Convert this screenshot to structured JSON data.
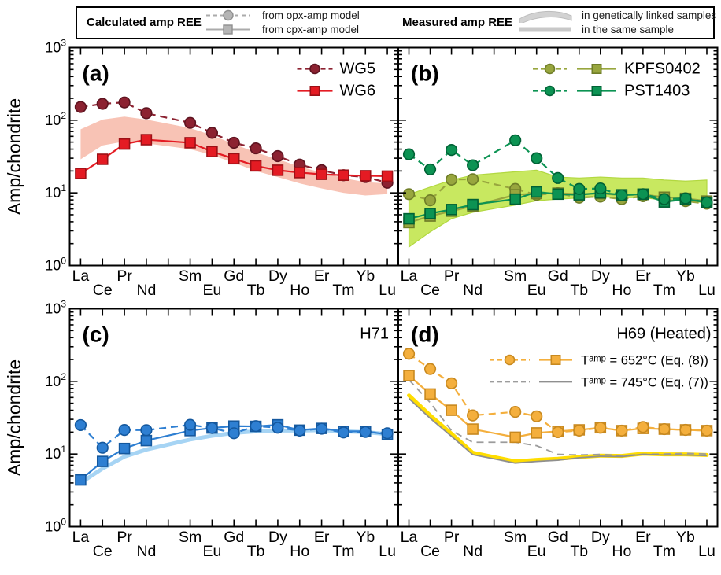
{
  "figure": {
    "y_axis_label": "Amp/chondrite",
    "y_tick_exponents": [
      0,
      1,
      2,
      3
    ],
    "x_elements": [
      "La",
      "Ce",
      "Pr",
      "Nd",
      "Sm",
      "Eu",
      "Gd",
      "Tb",
      "Dy",
      "Ho",
      "Er",
      "Tm",
      "Yb",
      "Lu"
    ]
  },
  "top_legend": {
    "calculated": {
      "title": "Calculated amp REE",
      "items": [
        {
          "swatch": "dashed-line-circle",
          "label": "from opx-amp model"
        },
        {
          "swatch": "solid-line-square",
          "label": "from cpx-amp model"
        }
      ]
    },
    "measured": {
      "title": "Measured amp REE",
      "items": [
        {
          "swatch": "band",
          "label": "in genetically linked samples"
        },
        {
          "swatch": "thick-line",
          "label": "in the same sample"
        }
      ]
    }
  },
  "chart_data": [
    {
      "panel": "a",
      "panel_label": "(a)",
      "corner_label": "",
      "type": "line",
      "y_scale": "log",
      "ylim": [
        1,
        1000
      ],
      "ylabel": "Amp/chondrite",
      "x_categories": [
        "La",
        "Ce",
        "Pr",
        "Nd",
        "Sm",
        "Eu",
        "Gd",
        "Tb",
        "Dy",
        "Ho",
        "Er",
        "Tm",
        "Yb",
        "Lu"
      ],
      "band": {
        "label": "measured amp REE in genetically linked samples",
        "color": "#f8c3b5",
        "upper": [
          75,
          102,
          112,
          102,
          78,
          62,
          47,
          36,
          29,
          23,
          19,
          16,
          14,
          13.5
        ],
        "lower": [
          29,
          45,
          51,
          48,
          40,
          33,
          26,
          20,
          16.5,
          13.5,
          11.5,
          10,
          9.2,
          9.6
        ]
      },
      "series": [
        {
          "name": "WG5",
          "model": "opx-amp",
          "line": "dashed",
          "marker": "circle",
          "color": "#8c2231",
          "edge": "#5e1420",
          "values": [
            152,
            168,
            176,
            125,
            92,
            67,
            49,
            41,
            32,
            24.5,
            20.5,
            17.5,
            16.5,
            13.8
          ]
        },
        {
          "name": "WG6",
          "model": "cpx-amp",
          "line": "solid",
          "marker": "square",
          "color": "#e41b23",
          "edge": "#9c1016",
          "values": [
            18.5,
            29,
            47,
            54,
            49,
            37,
            29.5,
            23.5,
            20.5,
            19,
            18,
            17.5,
            17.2,
            17
          ]
        }
      ],
      "legend": [
        {
          "label": "WG5",
          "swatches": [
            {
              "line": "dashed",
              "marker": "circle",
              "color": "#8c2231",
              "edge": "#5e1420"
            }
          ]
        },
        {
          "label": "WG6",
          "swatches": [
            {
              "line": "solid",
              "marker": "square",
              "color": "#e41b23",
              "edge": "#9c1016"
            }
          ]
        }
      ]
    },
    {
      "panel": "b",
      "panel_label": "(b)",
      "corner_label": "",
      "type": "line",
      "y_scale": "log",
      "ylim": [
        1,
        1000
      ],
      "ylabel": "Amp/chondrite",
      "x_categories": [
        "La",
        "Ce",
        "Pr",
        "Nd",
        "Sm",
        "Eu",
        "Gd",
        "Tb",
        "Dy",
        "Ho",
        "Er",
        "Tm",
        "Yb",
        "Lu"
      ],
      "band": {
        "label": "measured amp REE in genetically linked samples",
        "color": "#c8e860",
        "stroke": "#b2d840",
        "upper": [
          9.5,
          12,
          15,
          17.5,
          19.5,
          20.5,
          16.5,
          16,
          16.5,
          16,
          16,
          15,
          14.5,
          15
        ],
        "lower": [
          1.8,
          2.9,
          4.4,
          5.4,
          6.8,
          7.8,
          8.2,
          8.5,
          8.8,
          8.6,
          8.6,
          7.9,
          7.7,
          7.3
        ]
      },
      "series": [
        {
          "name": "KPFS0402 (opx-amp model)",
          "model": "opx-amp",
          "line": "dashed",
          "marker": "circle",
          "color": "#98a63e",
          "edge": "#6f7d28",
          "values": [
            9.6,
            7.9,
            15.2,
            15.4,
            11.3,
            9.4,
            9.9,
            8.6,
            8.9,
            8.2,
            9.0,
            8.0,
            7.7,
            7.1
          ]
        },
        {
          "name": "KPFS0402 (cpx-amp model)",
          "model": "cpx-amp",
          "line": "solid",
          "marker": "square",
          "color": "#98a63e",
          "edge": "#6f7d28",
          "values": [
            3.9,
            4.8,
            5.6,
            6.6,
            9.4,
            9.8,
            9.9,
            9.6,
            9.8,
            9.3,
            9.5,
            8.7,
            8.4,
            7.7
          ]
        },
        {
          "name": "PST1403 (cpx-amp model)",
          "model": "cpx-amp",
          "line": "solid",
          "marker": "square",
          "color": "#0c9353",
          "edge": "#006135",
          "values": [
            4.4,
            5.2,
            5.9,
            6.9,
            8.2,
            10.3,
            9.6,
            9.4,
            10.0,
            9.4,
            9.6,
            7.5,
            8.2,
            7.4
          ]
        },
        {
          "name": "PST1403 (opx-amp model)",
          "model": "opx-amp",
          "line": "dashed",
          "marker": "circle",
          "color": "#0c9353",
          "edge": "#006135",
          "values": [
            34,
            21,
            39,
            24,
            53,
            30,
            16,
            11.3,
            11.5,
            9.3,
            9.6,
            8.2,
            8.4,
            7.4
          ]
        }
      ],
      "legend": [
        {
          "label": "KPFS0402",
          "swatches": [
            {
              "line": "dashed",
              "marker": "circle",
              "color": "#98a63e",
              "edge": "#6f7d28"
            },
            {
              "line": "solid",
              "marker": "square",
              "color": "#98a63e",
              "edge": "#6f7d28"
            }
          ]
        },
        {
          "label": "PST1403",
          "swatches": [
            {
              "line": "dashed",
              "marker": "circle",
              "color": "#0c9353",
              "edge": "#006135"
            },
            {
              "line": "solid",
              "marker": "square",
              "color": "#0c9353",
              "edge": "#006135"
            }
          ]
        }
      ]
    },
    {
      "panel": "c",
      "panel_label": "(c)",
      "corner_label": "H71",
      "type": "line",
      "y_scale": "log",
      "ylim": [
        1,
        1000
      ],
      "ylabel": "Amp/chondrite",
      "x_categories": [
        "La",
        "Ce",
        "Pr",
        "Nd",
        "Sm",
        "Eu",
        "Gd",
        "Tb",
        "Dy",
        "Ho",
        "Er",
        "Tm",
        "Yb",
        "Lu"
      ],
      "band_line": {
        "label": "measured amp REE in the same sample",
        "color": "#a6d4f4",
        "values": [
          4.0,
          6.3,
          9.2,
          11.5,
          15.8,
          17.8,
          19.5,
          20.5,
          21,
          21,
          21.3,
          20.5,
          20,
          18.8
        ]
      },
      "series": [
        {
          "name": "H71 (cpx-amp model)",
          "model": "cpx-amp",
          "line": "solid",
          "marker": "square",
          "color": "#2e7fd2",
          "edge": "#14589e",
          "values": [
            4.4,
            7.9,
            11.9,
            15.3,
            21,
            22.8,
            24.2,
            24,
            25.2,
            21.3,
            22.5,
            20.5,
            20.5,
            18.6
          ]
        },
        {
          "name": "H71 (opx-amp model)",
          "model": "opx-amp",
          "line": "dashed",
          "marker": "circle",
          "color": "#2e7fd2",
          "edge": "#14589e",
          "values": [
            25,
            12.2,
            21.4,
            21.3,
            25.2,
            22.8,
            19.3,
            24.2,
            23,
            21,
            22.3,
            19.8,
            20.1,
            19.3
          ]
        }
      ],
      "legend": []
    },
    {
      "panel": "d",
      "panel_label": "(d)",
      "corner_label": "H69 (Heated)",
      "type": "line",
      "y_scale": "log",
      "ylim": [
        1,
        1000
      ],
      "ylabel": "Amp/chondrite",
      "x_categories": [
        "La",
        "Ce",
        "Pr",
        "Nd",
        "Sm",
        "Eu",
        "Gd",
        "Tb",
        "Dy",
        "Ho",
        "Er",
        "Tm",
        "Yb",
        "Lu"
      ],
      "band_line": {
        "label": "measured amp REE in the same sample",
        "color": "#ffdd00",
        "values": [
          64,
          34,
          19,
          10.4,
          7.9,
          8.3,
          8.6,
          9.1,
          9.5,
          9.4,
          10.1,
          9.9,
          9.9,
          9.7
        ]
      },
      "series": [
        {
          "name": "Tᵃᵐᵖ = 745°C (Eq. (7)) opx-amp model",
          "model": "opx-amp",
          "line": "dashed",
          "marker": "none",
          "color": "#9c9c9c",
          "edge": "#9c9c9c",
          "width": 1.8,
          "values": [
            105,
            51,
            21,
            14.5,
            14.5,
            13,
            9.9,
            9.7,
            9.9,
            9.5,
            9.9,
            10,
            10.2,
            10
          ]
        },
        {
          "name": "Tᵃᵐᵖ = 745°C (Eq. (7)) cpx-amp model",
          "model": "cpx-amp",
          "line": "solid",
          "marker": "none",
          "color": "#8f8f8f",
          "edge": "#8f8f8f",
          "width": 1.8,
          "values": [
            58,
            31,
            17.5,
            9.8,
            7.5,
            7.9,
            8.2,
            8.9,
            9.3,
            9.2,
            9.9,
            9.7,
            9.7,
            9.5
          ]
        },
        {
          "name": "Tᵃᵐᵖ = 652°C (Eq. (8)) cpx-amp model",
          "model": "cpx-amp",
          "line": "solid",
          "marker": "square",
          "color": "#f4af3d",
          "edge": "#c8891f",
          "values": [
            120,
            67,
            40,
            22,
            17,
            19.5,
            20.5,
            21.5,
            23,
            21,
            22.5,
            22,
            21.5,
            21
          ]
        },
        {
          "name": "Tᵃᵐᵖ = 652°C (Eq. (8)) opx-amp model",
          "model": "opx-amp",
          "line": "dashed",
          "marker": "circle",
          "color": "#f4af3d",
          "edge": "#c8891f",
          "values": [
            240,
            148,
            94,
            34,
            38,
            33,
            20,
            21,
            23,
            21,
            23.5,
            22,
            21.5,
            21
          ]
        }
      ],
      "legend": [
        {
          "label": "Tᵃᵐᵖ = 652°C (Eq. (8))",
          "swatches": [
            {
              "line": "dashed",
              "marker": "circle",
              "color": "#f4af3d",
              "edge": "#c8891f"
            },
            {
              "line": "solid",
              "marker": "square",
              "color": "#f4af3d",
              "edge": "#c8891f"
            }
          ]
        },
        {
          "label": "Tᵃᵐᵖ = 745°C (Eq. (7))",
          "swatches": [
            {
              "line": "dashed",
              "marker": "none",
              "color": "#9c9c9c",
              "edge": "#9c9c9c"
            },
            {
              "line": "solid",
              "marker": "none",
              "color": "#8f8f8f",
              "edge": "#8f8f8f"
            }
          ]
        }
      ]
    }
  ]
}
